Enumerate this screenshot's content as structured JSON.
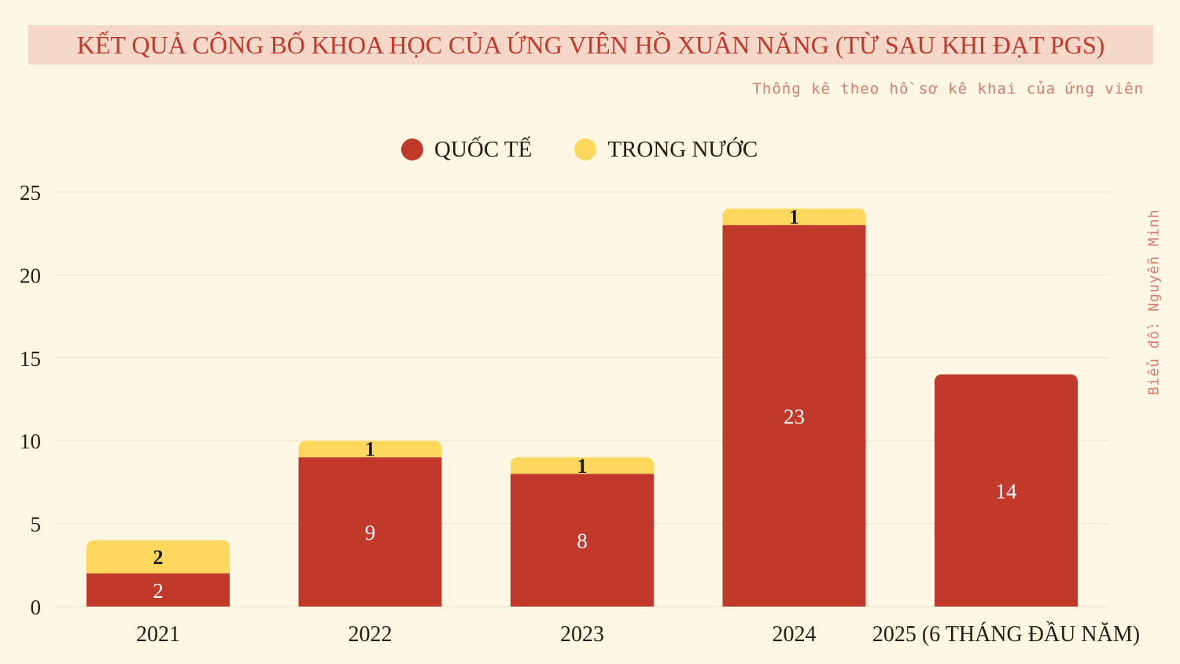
{
  "header": {
    "title": "KẾT QUẢ CÔNG BỐ KHOA HỌC CỦA ỨNG VIÊN HỒ XUÂN NĂNG (TỪ SAU KHI ĐẠT PGS)",
    "subtitle": "Thống kê theo hồ sơ kê khai của ứng viên",
    "credit": "Biểu đồ: Nguyễn Minh"
  },
  "colors": {
    "background": "#fdf7e3",
    "international": "#c0392b",
    "domestic": "#fdd85d",
    "title_band": "#f6d8c8"
  },
  "chart_data": {
    "type": "bar",
    "stacked": true,
    "categories": [
      "2021",
      "2022",
      "2023",
      "2024",
      "2025 (6 THÁNG ĐẦU NĂM)"
    ],
    "series": [
      {
        "name": "QUỐC TẾ",
        "color": "#c0392b",
        "values": [
          2,
          9,
          8,
          23,
          14
        ]
      },
      {
        "name": "TRONG NƯỚC",
        "color": "#fdd85d",
        "values": [
          2,
          1,
          1,
          1,
          0
        ]
      }
    ],
    "ylim": [
      0,
      25
    ],
    "yticks": [
      0,
      5,
      10,
      15,
      20,
      25
    ],
    "grid": true,
    "legend_position": "top-center",
    "xlabel": "",
    "ylabel": ""
  }
}
